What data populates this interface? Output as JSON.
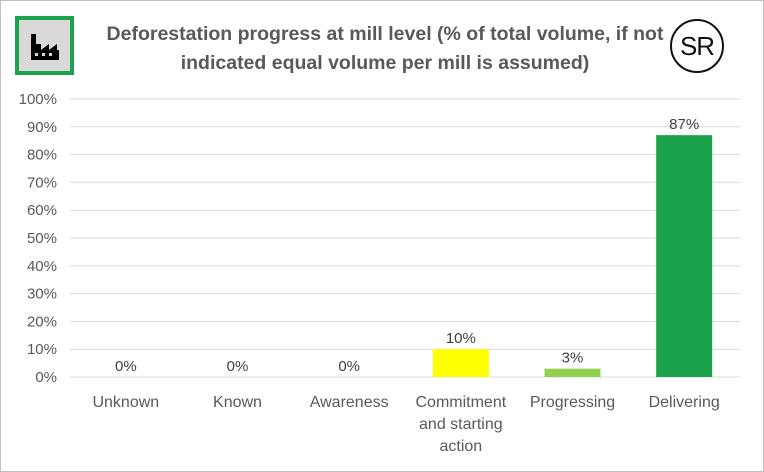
{
  "header": {
    "title": "Deforestation progress at mill level (% of total volume, if not indicated equal volume per mill is assumed)",
    "logo_text": "SR",
    "icon": "factory-icon"
  },
  "colors": {
    "unknown": "#ff0000",
    "known": "#ff9900",
    "awareness": "#ffc000",
    "commitment": "#ffff00",
    "progressing": "#92d050",
    "delivering": "#1aa34a",
    "grid": "#d9d9d9",
    "text": "#595959",
    "label_text": "#404040",
    "badge_green": "#1aa34a"
  },
  "chart_data": {
    "type": "bar",
    "title": "Deforestation progress at mill level (% of total volume, if not indicated equal volume per mill is assumed)",
    "categories": [
      "Unknown",
      "Known",
      "Awareness",
      "Commitment and starting action",
      "Progressing",
      "Delivering"
    ],
    "category_lines": [
      [
        "Unknown"
      ],
      [
        "Known"
      ],
      [
        "Awareness"
      ],
      [
        "Commitment",
        "and starting",
        "action"
      ],
      [
        "Progressing"
      ],
      [
        "Delivering"
      ]
    ],
    "values": [
      0,
      0,
      0,
      10,
      3,
      87
    ],
    "data_labels": [
      "0%",
      "0%",
      "0%",
      "10%",
      "3%",
      "87%"
    ],
    "yticks": [
      "0%",
      "10%",
      "20%",
      "30%",
      "40%",
      "50%",
      "60%",
      "70%",
      "80%",
      "90%",
      "100%"
    ],
    "ylim": [
      0,
      100
    ],
    "xlabel": "",
    "ylabel": "",
    "grid": true,
    "legend": "none"
  }
}
